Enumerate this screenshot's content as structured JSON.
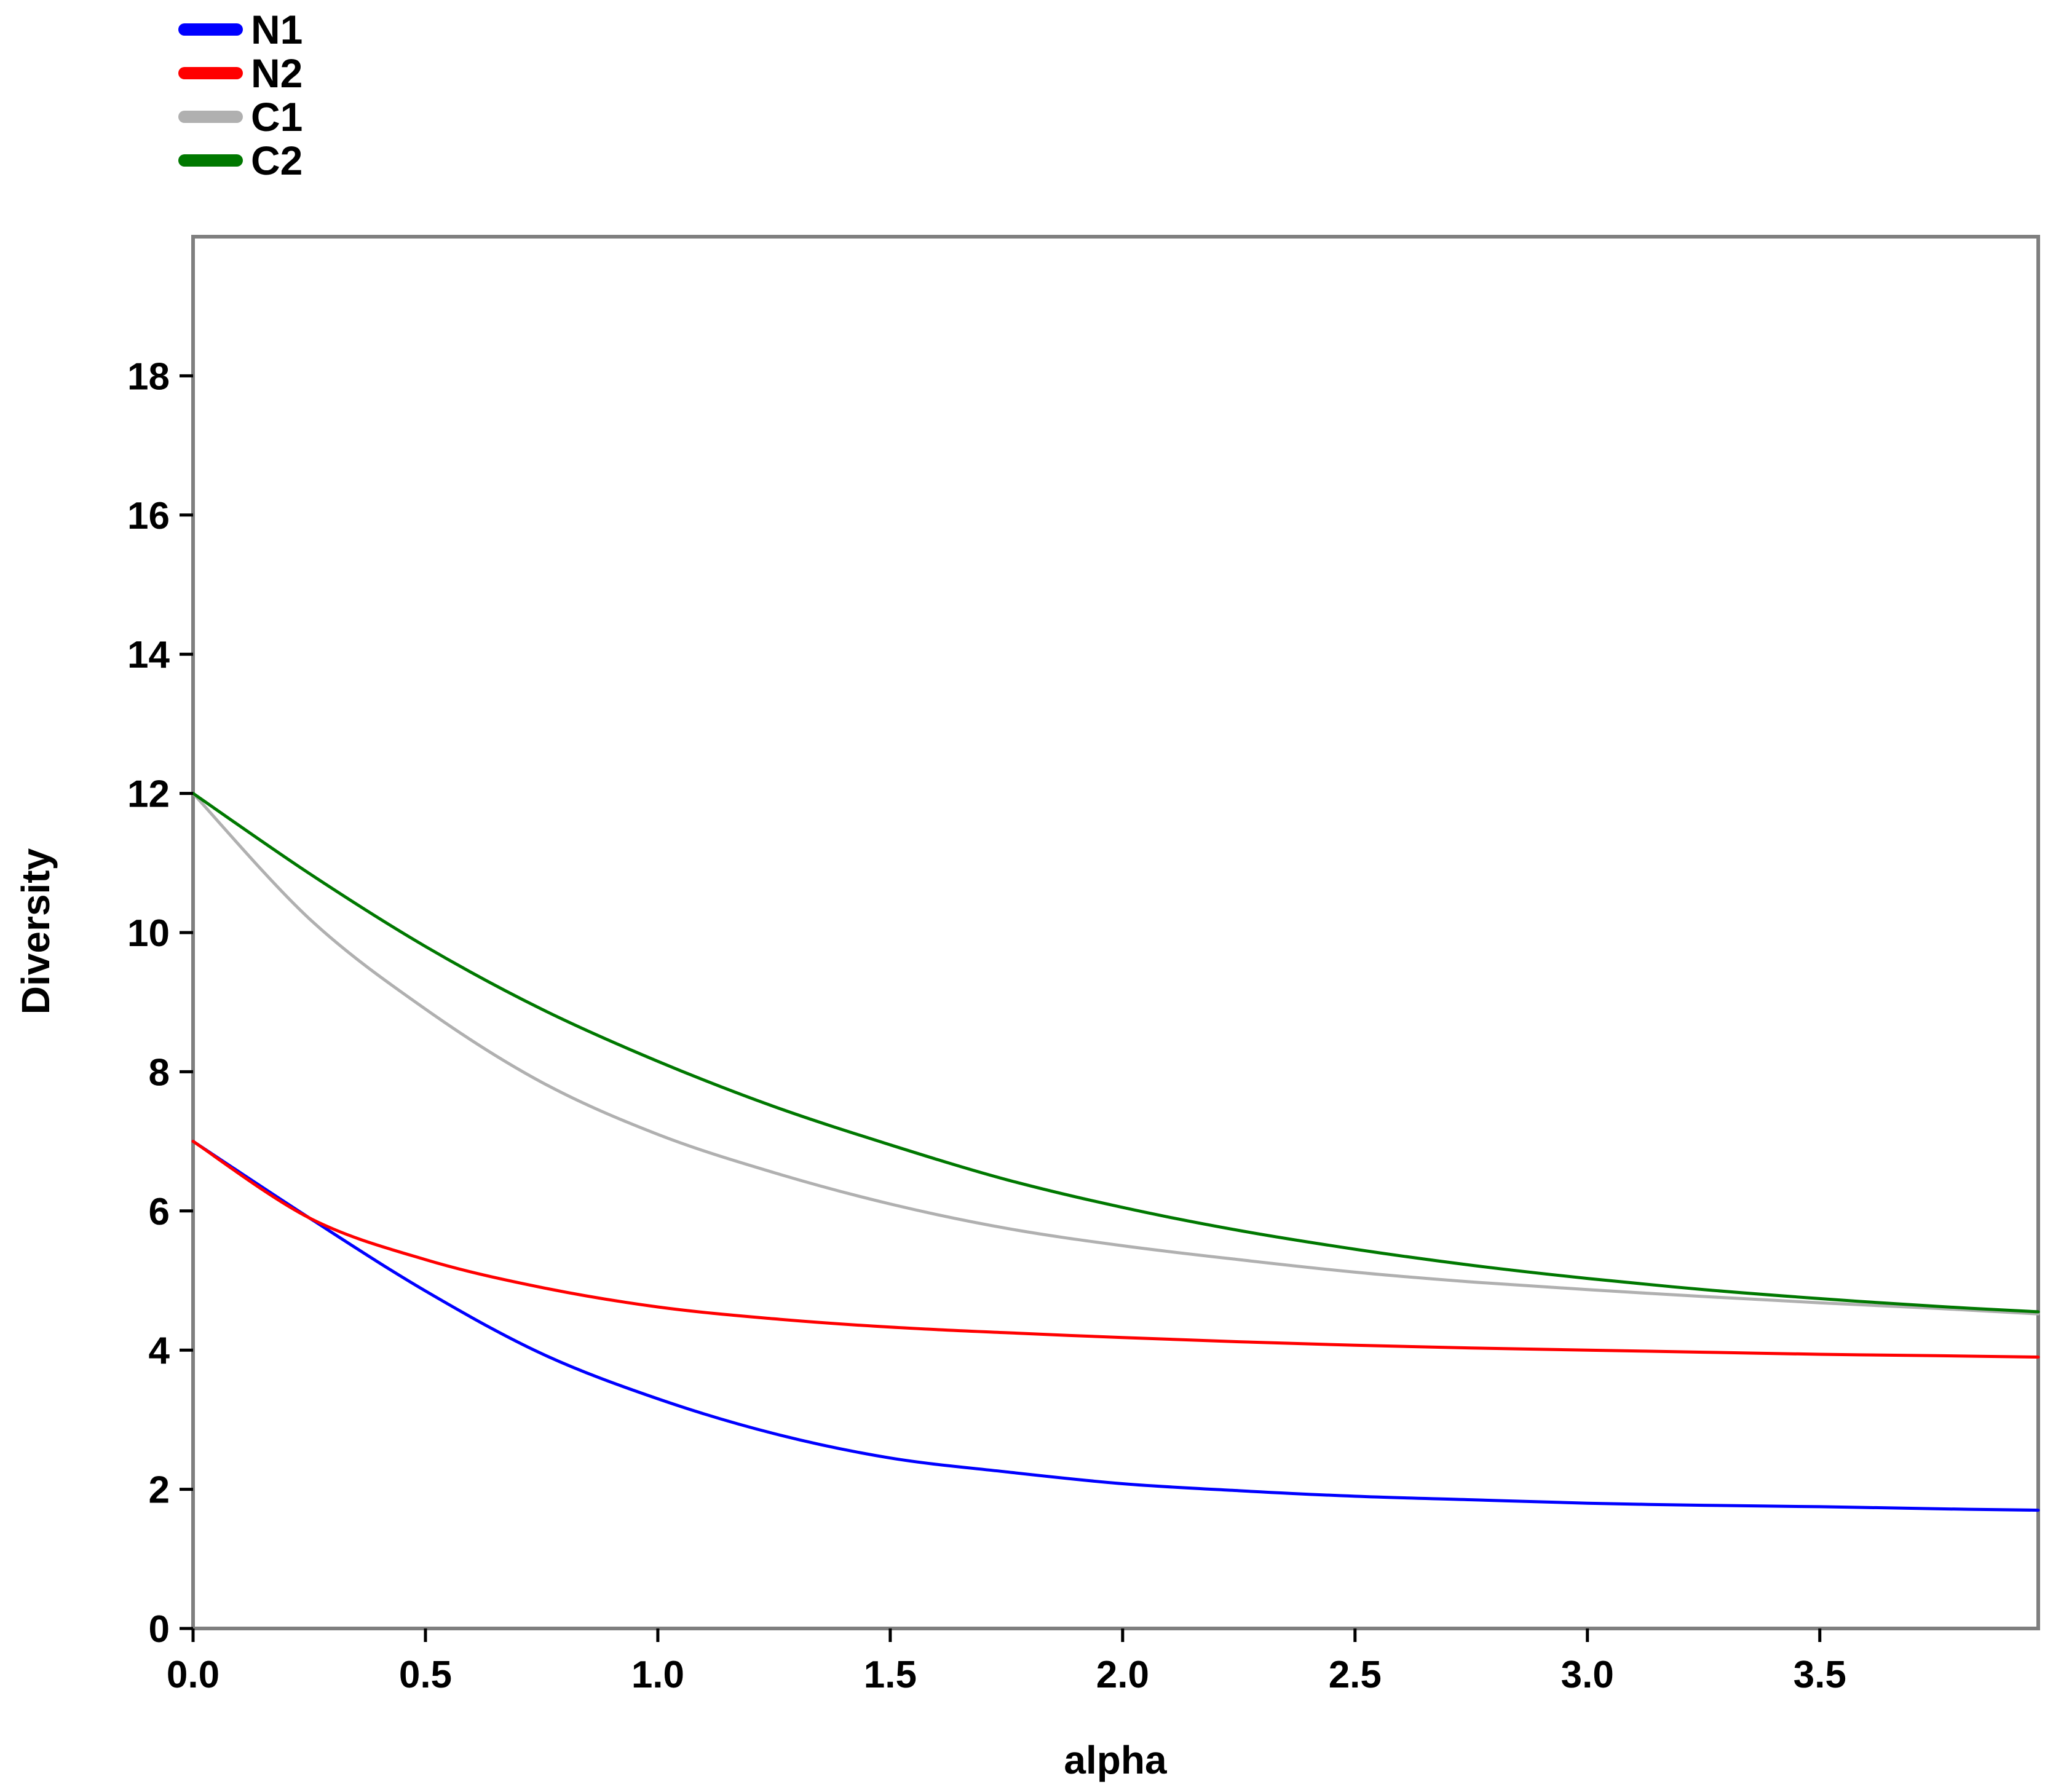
{
  "chart_data": {
    "type": "line",
    "title": "",
    "xlabel": "alpha",
    "ylabel": "Diversity",
    "xlim": [
      0,
      3.97
    ],
    "ylim": [
      0,
      20
    ],
    "x_ticks": [
      0.0,
      0.5,
      1.0,
      1.5,
      2.0,
      2.5,
      3.0,
      3.5
    ],
    "x_tick_labels": [
      "0.0",
      "0.5",
      "1.0",
      "1.5",
      "2.0",
      "2.5",
      "3.0",
      "3.5"
    ],
    "y_ticks": [
      0,
      2,
      4,
      6,
      8,
      10,
      12,
      14,
      16,
      18
    ],
    "y_tick_labels": [
      "0",
      "2",
      "4",
      "6",
      "8",
      "10",
      "12",
      "14",
      "16",
      "18"
    ],
    "grid": false,
    "legend_position": "top-left, outside plot",
    "x": [
      0.0,
      0.25,
      0.5,
      0.75,
      1.0,
      1.25,
      1.5,
      1.75,
      2.0,
      2.25,
      2.5,
      2.75,
      3.0,
      3.25,
      3.5,
      3.75,
      3.97
    ],
    "series": [
      {
        "name": "N1",
        "color": "#0000ff",
        "values": [
          7.0,
          5.9,
          4.85,
          3.95,
          3.3,
          2.8,
          2.45,
          2.25,
          2.08,
          1.98,
          1.9,
          1.85,
          1.8,
          1.77,
          1.75,
          1.72,
          1.7
        ]
      },
      {
        "name": "N2",
        "color": "#ff0000",
        "values": [
          7.0,
          5.9,
          5.3,
          4.9,
          4.62,
          4.45,
          4.33,
          4.25,
          4.18,
          4.12,
          4.07,
          4.03,
          4.0,
          3.97,
          3.94,
          3.92,
          3.9
        ]
      },
      {
        "name": "C1",
        "color": "#b0b0b0",
        "values": [
          12.0,
          10.2,
          8.9,
          7.85,
          7.1,
          6.55,
          6.1,
          5.75,
          5.5,
          5.3,
          5.12,
          4.98,
          4.87,
          4.77,
          4.68,
          4.6,
          4.52
        ]
      },
      {
        "name": "C2",
        "color": "#007800",
        "values": [
          12.0,
          10.85,
          9.8,
          8.9,
          8.15,
          7.5,
          6.95,
          6.45,
          6.05,
          5.72,
          5.45,
          5.22,
          5.03,
          4.87,
          4.74,
          4.63,
          4.55
        ]
      }
    ]
  }
}
